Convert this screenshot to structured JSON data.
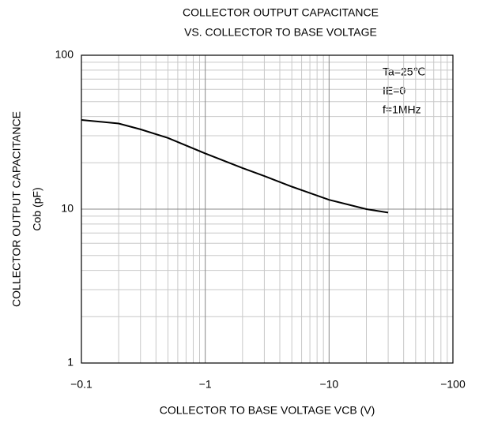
{
  "chart_data": {
    "type": "line",
    "title": [
      "COLLECTOR OUTPUT CAPACITANCE",
      "VS. COLLECTOR TO BASE VOLTAGE"
    ],
    "xlabel": "COLLECTOR TO BASE VOLTAGE   VCB (V)",
    "ylabel": [
      "COLLECTOR OUTPUT CAPACITANCE",
      "Cob (pF)"
    ],
    "annotations": [
      "Ta=25℃",
      "IE=0",
      "f=1MHz"
    ],
    "x": [
      -0.1,
      -0.2,
      -0.3,
      -0.5,
      -1,
      -2,
      -3,
      -5,
      -10,
      -20,
      -30
    ],
    "series": [
      {
        "color": "#000000",
        "values": [
          38,
          36,
          33,
          29,
          23,
          18.5,
          16.4,
          14,
          11.5,
          10,
          9.5
        ]
      }
    ],
    "xscale": "log",
    "yscale": "log",
    "xlim": [
      -0.1,
      -100
    ],
    "ylim": [
      1,
      100
    ],
    "xticks": [
      {
        "value": -0.1,
        "label": "−0.1"
      },
      {
        "value": -1,
        "label": "−1"
      },
      {
        "value": -10,
        "label": "−10"
      },
      {
        "value": -100,
        "label": "−100"
      }
    ],
    "yticks": [
      1,
      10,
      100
    ],
    "xminorticks": [
      -0.2,
      -0.3,
      -0.4,
      -0.5,
      -0.6,
      -0.7,
      -0.8,
      -0.9,
      -2,
      -3,
      -4,
      -5,
      -6,
      -7,
      -8,
      -9,
      -20,
      -30,
      -40,
      -50,
      -60,
      -70,
      -80,
      -90
    ],
    "yminorticks": [
      2,
      3,
      4,
      5,
      6,
      7,
      8,
      9,
      20,
      30,
      40,
      50,
      60,
      70,
      80,
      90
    ],
    "grid": true
  }
}
